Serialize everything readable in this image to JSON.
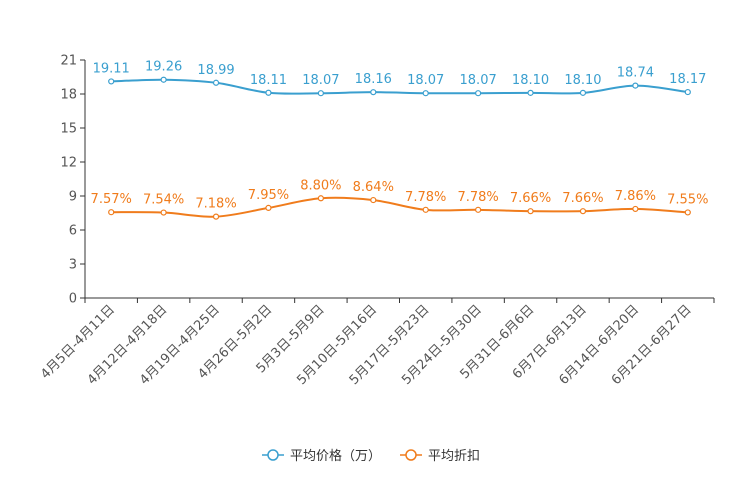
{
  "chart_data": {
    "type": "line",
    "title": "",
    "xlabel": "",
    "ylabel": "",
    "ylim": [
      0,
      21
    ],
    "yticks": [
      0,
      3,
      6,
      9,
      12,
      15,
      18,
      21
    ],
    "grid": false,
    "legend_position": "bottom-center",
    "categories": [
      "4月5日-4月11日",
      "4月12日-4月18日",
      "4月19日-4月25日",
      "4月26日-5月2日",
      "5月3日-5月9日",
      "5月10日-5月16日",
      "5月17日-5月23日",
      "5月24日-5月30日",
      "5月31日-6月6日",
      "6月7日-6月13日",
      "6月14日-6月20日",
      "6月21日-6月27日"
    ],
    "series": [
      {
        "name": "平均价格（万）",
        "color": "#3a9fcf",
        "values": [
          19.11,
          19.26,
          18.99,
          18.11,
          18.07,
          18.16,
          18.07,
          18.07,
          18.1,
          18.1,
          18.74,
          18.17
        ],
        "labels": [
          "19.11",
          "19.26",
          "18.99",
          "18.11",
          "18.07",
          "18.16",
          "18.07",
          "18.07",
          "18.10",
          "18.10",
          "18.74",
          "18.17"
        ]
      },
      {
        "name": "平均折扣",
        "color": "#f07c1c",
        "values": [
          7.57,
          7.54,
          7.18,
          7.95,
          8.8,
          8.64,
          7.78,
          7.78,
          7.66,
          7.66,
          7.86,
          7.55
        ],
        "labels": [
          "7.57%",
          "7.54%",
          "7.18%",
          "7.95%",
          "8.80%",
          "8.64%",
          "7.78%",
          "7.78%",
          "7.66%",
          "7.66%",
          "7.86%",
          "7.55%"
        ]
      }
    ]
  }
}
